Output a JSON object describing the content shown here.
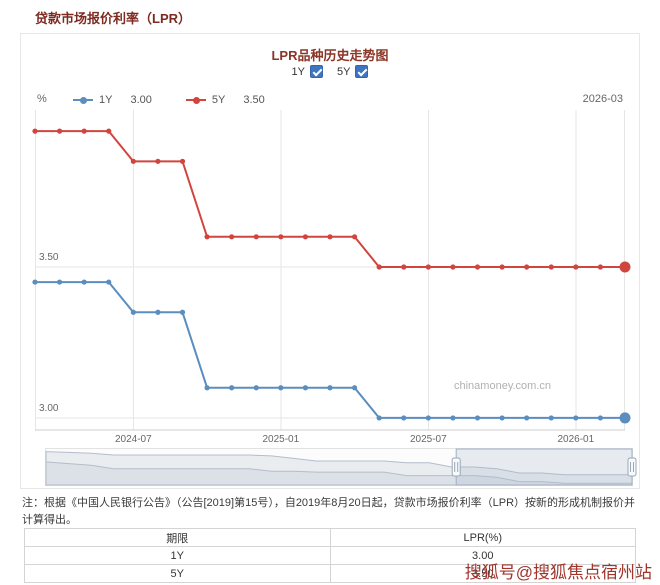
{
  "page": {
    "title": "贷款市场报价利率（LPR）",
    "sohu_watermark": "搜狐号@搜狐焦点宿州站"
  },
  "chart_card": {
    "title": "LPR品种历史走势图",
    "toggles": [
      {
        "label": "1Y",
        "checked": true
      },
      {
        "label": "5Y",
        "checked": true
      }
    ],
    "unit": "%",
    "current_date": "2026-03",
    "legend": [
      {
        "name": "1Y",
        "value": "3.00",
        "color": "#5b8dbe"
      },
      {
        "name": "5Y",
        "value": "3.50",
        "color": "#d0453e"
      }
    ],
    "watermark": "chinamoney.com.cn"
  },
  "chart_data": {
    "type": "line",
    "title": "LPR品种历史走势图",
    "x": [
      "2024-03",
      "2024-04",
      "2024-05",
      "2024-06",
      "2024-07",
      "2024-08",
      "2024-09",
      "2024-10",
      "2024-11",
      "2024-12",
      "2025-01",
      "2025-02",
      "2025-03",
      "2025-04",
      "2025-05",
      "2025-06",
      "2025-07",
      "2025-08",
      "2025-09",
      "2025-10",
      "2025-11",
      "2025-12",
      "2026-01",
      "2026-02",
      "2026-03"
    ],
    "xticks": [
      "2024-07",
      "2025-01",
      "2025-07",
      "2026-01"
    ],
    "yticks": [
      {
        "v": 3.0,
        "label": "3.00"
      },
      {
        "v": 3.5,
        "label": "3.50"
      }
    ],
    "ylim": [
      2.96,
      4.02
    ],
    "xlabel": "",
    "ylabel": "%",
    "grid": true,
    "legend_position": "top",
    "series": [
      {
        "name": "1Y",
        "color": "#5b8dbe",
        "values": [
          3.45,
          3.45,
          3.45,
          3.45,
          3.35,
          3.35,
          3.35,
          3.1,
          3.1,
          3.1,
          3.1,
          3.1,
          3.1,
          3.1,
          3.0,
          3.0,
          3.0,
          3.0,
          3.0,
          3.0,
          3.0,
          3.0,
          3.0,
          3.0,
          3.0
        ]
      },
      {
        "name": "5Y",
        "color": "#d0453e",
        "values": [
          3.95,
          3.95,
          3.95,
          3.95,
          3.85,
          3.85,
          3.85,
          3.6,
          3.6,
          3.6,
          3.6,
          3.6,
          3.6,
          3.6,
          3.5,
          3.5,
          3.5,
          3.5,
          3.5,
          3.5,
          3.5,
          3.5,
          3.5,
          3.5,
          3.5
        ]
      }
    ]
  },
  "minimap": {
    "range": [
      "2019-08",
      "2026-03"
    ],
    "window": [
      0.7,
      1.0
    ],
    "ylim": [
      2.9,
      5.0
    ],
    "series": [
      {
        "name": "5Y",
        "values": [
          4.85,
          4.8,
          4.75,
          4.65,
          4.65,
          4.65,
          4.65,
          4.65,
          4.65,
          4.65,
          4.6,
          4.45,
          4.3,
          4.3,
          4.3,
          4.3,
          4.2,
          4.2,
          3.95,
          3.95,
          3.85,
          3.6,
          3.6,
          3.5,
          3.5,
          3.5,
          3.5
        ]
      },
      {
        "name": "1Y",
        "values": [
          4.25,
          4.15,
          4.05,
          3.85,
          3.85,
          3.85,
          3.85,
          3.85,
          3.85,
          3.85,
          3.7,
          3.7,
          3.65,
          3.65,
          3.65,
          3.65,
          3.45,
          3.45,
          3.45,
          3.45,
          3.35,
          3.1,
          3.1,
          3.0,
          3.0,
          3.0,
          3.0
        ]
      }
    ]
  },
  "note": "注：根据《中国人民银行公告》（公告[2019]第15号），自2019年8月20日起，贷款市场报价利率（LPR）按新的形成机制报价并计算得出。",
  "table": {
    "headers": [
      "期限",
      "LPR(%)"
    ],
    "rows": [
      [
        "1Y",
        "3.00"
      ],
      [
        "5Y",
        "3.50"
      ]
    ]
  }
}
